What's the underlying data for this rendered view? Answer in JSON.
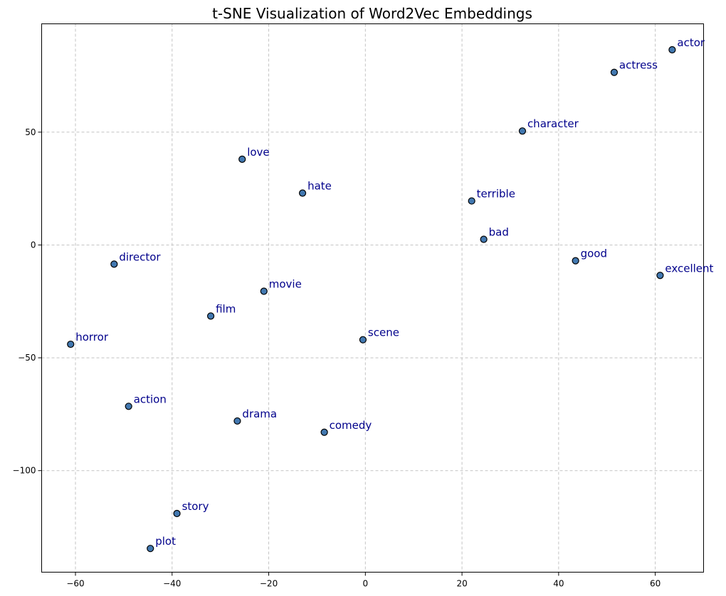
{
  "chart_data": {
    "type": "scatter",
    "title": "t-SNE Visualization of Word2Vec Embeddings",
    "xlabel": "",
    "ylabel": "",
    "xlim": [
      -67,
      70
    ],
    "ylim": [
      -145,
      98
    ],
    "xticks": [
      -60,
      -40,
      -20,
      0,
      20,
      40,
      60
    ],
    "yticks": [
      -100,
      -50,
      0,
      50
    ],
    "xtick_labels": [
      "−60",
      "−40",
      "−20",
      "0",
      "20",
      "40",
      "60"
    ],
    "ytick_labels": [
      "−100",
      "−50",
      "0",
      "50"
    ],
    "grid": true,
    "points": [
      {
        "label": "actor",
        "x": 63.5,
        "y": 86.5
      },
      {
        "label": "actress",
        "x": 51.5,
        "y": 76.5
      },
      {
        "label": "character",
        "x": 32.5,
        "y": 50.5
      },
      {
        "label": "love",
        "x": -25.5,
        "y": 38.0
      },
      {
        "label": "hate",
        "x": -13.0,
        "y": 23.0
      },
      {
        "label": "terrible",
        "x": 22.0,
        "y": 19.5
      },
      {
        "label": "bad",
        "x": 24.5,
        "y": 2.5
      },
      {
        "label": "good",
        "x": 43.5,
        "y": -7.0
      },
      {
        "label": "excellent",
        "x": 61.0,
        "y": -13.5
      },
      {
        "label": "director",
        "x": -52.0,
        "y": -8.5
      },
      {
        "label": "movie",
        "x": -21.0,
        "y": -20.5
      },
      {
        "label": "film",
        "x": -32.0,
        "y": -31.5
      },
      {
        "label": "horror",
        "x": -61.0,
        "y": -44.0
      },
      {
        "label": "scene",
        "x": -0.5,
        "y": -42.0
      },
      {
        "label": "action",
        "x": -49.0,
        "y": -71.5
      },
      {
        "label": "drama",
        "x": -26.5,
        "y": -78.0
      },
      {
        "label": "comedy",
        "x": -8.5,
        "y": -83.0
      },
      {
        "label": "story",
        "x": -39.0,
        "y": -119.0
      },
      {
        "label": "plot",
        "x": -44.5,
        "y": -134.5
      }
    ],
    "colors": {
      "marker_fill": "#4278b0",
      "marker_edge": "#000000",
      "label_text": "#00008b"
    }
  }
}
